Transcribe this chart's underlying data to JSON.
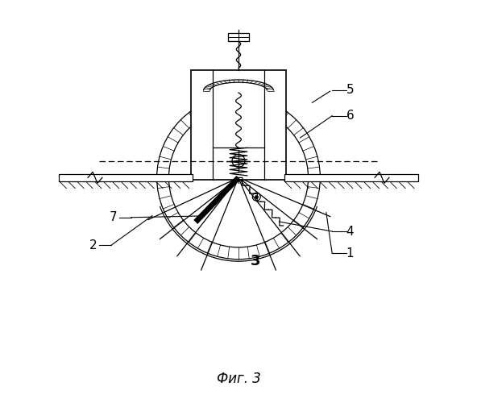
{
  "bg_color": "#ffffff",
  "line_color": "#000000",
  "fig_width": 5.92,
  "fig_height": 5.0,
  "title": "Фиг. 3"
}
